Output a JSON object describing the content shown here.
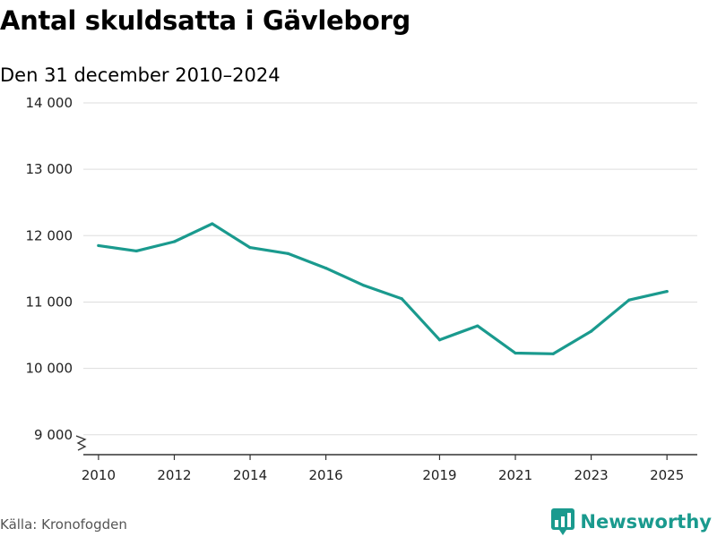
{
  "header": {
    "title": "Antal skuldsatta i Gävleborg",
    "subtitle": "Den 31 december 2010–2024"
  },
  "footer": {
    "source": "Källa: Kronofogden",
    "brand": "Newsworthy"
  },
  "colors": {
    "line": "#1a9a8e",
    "grid": "#dddddd",
    "axis": "#333333",
    "brand": "#1a9a8e"
  },
  "chart_data": {
    "type": "line",
    "title": "Antal skuldsatta i Gävleborg",
    "subtitle": "Den 31 december 2010–2024",
    "xlabel": "",
    "ylabel": "",
    "xlim": [
      2009.6,
      2025.8
    ],
    "ylim": [
      8700,
      14000
    ],
    "y_ticks": [
      9000,
      10000,
      11000,
      12000,
      13000,
      14000
    ],
    "y_tick_labels": [
      "9 000",
      "10 000",
      "11 000",
      "12 000",
      "13 000",
      "14 000"
    ],
    "x_ticks": [
      2010,
      2012,
      2014,
      2016,
      2019,
      2021,
      2023,
      2025
    ],
    "x_tick_labels": [
      "2010",
      "2012",
      "2014",
      "2016",
      "2019",
      "2021",
      "2023",
      "2025"
    ],
    "axis_break": true,
    "grid": true,
    "series": [
      {
        "name": "Antal skuldsatta",
        "x": [
          2010,
          2011,
          2012,
          2013,
          2014,
          2015,
          2016,
          2017,
          2018,
          2019,
          2020,
          2021,
          2022,
          2023,
          2024,
          2025
        ],
        "values": [
          11850,
          11770,
          11910,
          12180,
          11820,
          11730,
          11510,
          11250,
          11050,
          10430,
          10640,
          10230,
          10220,
          10560,
          11030,
          11160
        ]
      }
    ]
  }
}
